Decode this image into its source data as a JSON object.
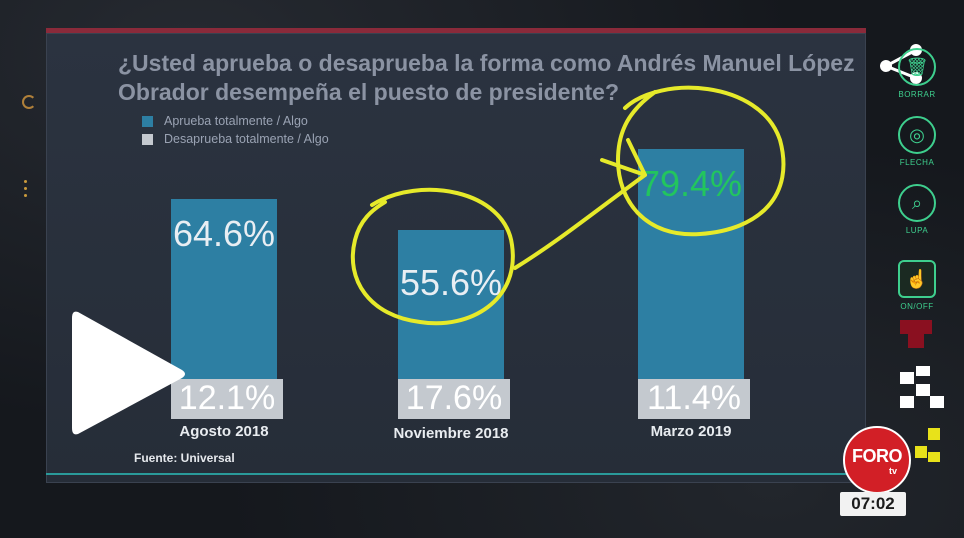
{
  "chart_data": {
    "type": "bar",
    "title": "¿Usted aprueba o desaprueba la forma como Andrés Manuel López Obrador desempeña el puesto de presidente?",
    "categories": [
      "Agosto 2018",
      "Noviembre 2018",
      "Marzo 2019"
    ],
    "series": [
      {
        "name": "Aprueba totalmente / Algo",
        "values": [
          64.6,
          55.6,
          79.4
        ],
        "labels": [
          "64.6%",
          "55.6%",
          "79.4%"
        ]
      },
      {
        "name": "Desaprueba totalmente / Algo",
        "values": [
          12.1,
          17.6,
          11.4
        ],
        "labels": [
          "12.1%",
          "17.6%",
          "11.4%"
        ]
      }
    ],
    "ylim": [
      0,
      100
    ],
    "source": "Fuente: Universal",
    "colors": {
      "approve": "#2d7fa3",
      "disapprove": "#c4c9cf",
      "highlight": "#22c55e",
      "annotation": "#e6ea2a"
    }
  },
  "toolbar": {
    "tools": [
      {
        "icon": "trash-icon",
        "label": "BORRAR"
      },
      {
        "icon": "target-icon",
        "label": "FLECHA"
      },
      {
        "icon": "magnifier-icon",
        "label": "LUPA"
      },
      {
        "icon": "touch-icon",
        "label": "ON/OFF"
      }
    ]
  },
  "broadcast": {
    "logo_text": "FORO",
    "logo_sub": "tv",
    "time": "07:02"
  }
}
